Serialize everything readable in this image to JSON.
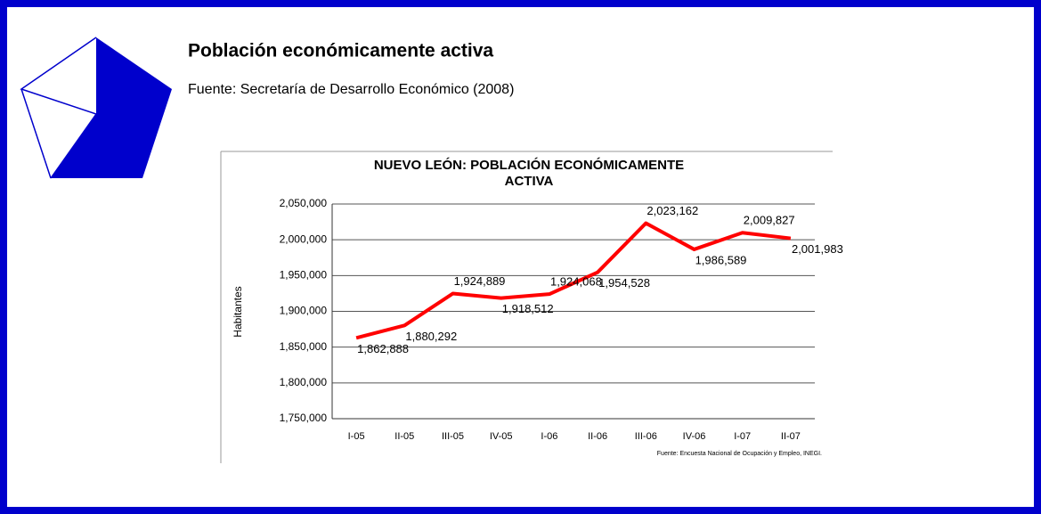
{
  "header": {
    "title": "Población económicamente activa",
    "source": "Fuente: Secretaría de Desarrollo Económico (2008)"
  },
  "chart_data": {
    "type": "line",
    "title": "NUEVO LEÓN: POBLACIÓN ECONÓMICAMENTE ACTIVA",
    "y_label": "Habitantes",
    "note": "Fuente: Encuesta Nacional de Ocupación y Empleo, INEGI.",
    "categories": [
      "I-05",
      "II-05",
      "III-05",
      "IV-05",
      "I-06",
      "II-06",
      "III-06",
      "IV-06",
      "I-07",
      "II-07"
    ],
    "series": [
      {
        "name": "Población económicamente activa",
        "color": "#ff0000",
        "values": [
          1862888,
          1880292,
          1924889,
          1918512,
          1924068,
          1954528,
          2023162,
          1986589,
          2009827,
          2001983
        ],
        "value_labels": [
          "1,862,888",
          "1,880,292",
          "1,924,889",
          "1,918,512",
          "1,924,068",
          "1,954,528",
          "2,023,162",
          "1,986,589",
          "2,009,827",
          "2,001,983"
        ]
      }
    ],
    "ylim": [
      1750000,
      2050000
    ],
    "yticks": [
      {
        "value": 1750000,
        "label": "1,750,000"
      },
      {
        "value": 1800000,
        "label": "1,800,000"
      },
      {
        "value": 1850000,
        "label": "1,850,000"
      },
      {
        "value": 1900000,
        "label": "1,900,000"
      },
      {
        "value": 1950000,
        "label": "1,950,000"
      },
      {
        "value": 2000000,
        "label": "2,000,000"
      },
      {
        "value": 2050000,
        "label": "2,050,000"
      }
    ],
    "grid": true
  }
}
